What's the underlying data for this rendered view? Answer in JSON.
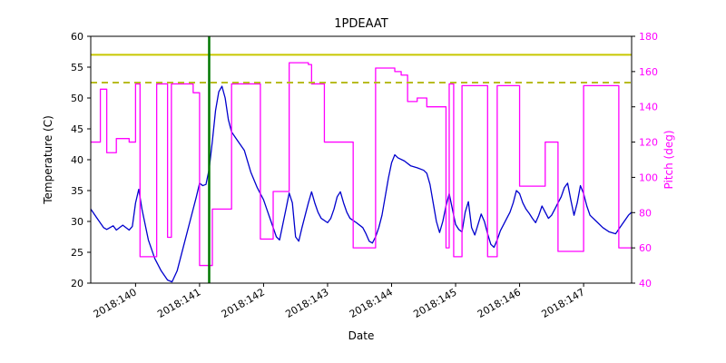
{
  "chart_data": {
    "type": "line",
    "title": "1PDEAAT",
    "xlabel": "Date",
    "ylabel_left": "Temperature (C)",
    "ylabel_right": "Pitch (deg)",
    "x_domain": [
      139.3,
      147.75
    ],
    "y_left_domain": [
      20,
      60
    ],
    "y_right_domain": [
      40,
      180
    ],
    "x_ticks": [
      {
        "value": 140,
        "label": "2018:140"
      },
      {
        "value": 141,
        "label": "2018:141"
      },
      {
        "value": 142,
        "label": "2018:142"
      },
      {
        "value": 143,
        "label": "2018:143"
      },
      {
        "value": 144,
        "label": "2018:144"
      },
      {
        "value": 145,
        "label": "2018:145"
      },
      {
        "value": 146,
        "label": "2018:146"
      },
      {
        "value": 147,
        "label": "2018:147"
      }
    ],
    "y_left_ticks": [
      20,
      25,
      30,
      35,
      40,
      45,
      50,
      55,
      60
    ],
    "y_right_ticks": [
      40,
      60,
      80,
      100,
      120,
      140,
      160,
      180
    ],
    "colors": {
      "temperature": "#0000cd",
      "pitch": "#ff00ff",
      "limit_solid": "#c8c800",
      "limit_dashed": "#b8bc20",
      "event_line": "#007700",
      "frame": "#000000"
    },
    "reference_lines": {
      "solid_yellow_temp": 57,
      "dashed_yellow_temp": 52.5,
      "green_vline_x": 141.15
    },
    "series": [
      {
        "name": "Temperature",
        "axis": "left",
        "color": "#0000cd",
        "points": [
          [
            139.3,
            32
          ],
          [
            139.4,
            30.5
          ],
          [
            139.5,
            29
          ],
          [
            139.55,
            28.7
          ],
          [
            139.65,
            29.3
          ],
          [
            139.7,
            28.6
          ],
          [
            139.8,
            29.4
          ],
          [
            139.9,
            28.6
          ],
          [
            139.95,
            29.2
          ],
          [
            140.0,
            33
          ],
          [
            140.05,
            35.2
          ],
          [
            140.1,
            32
          ],
          [
            140.2,
            27
          ],
          [
            140.3,
            24
          ],
          [
            140.4,
            22
          ],
          [
            140.5,
            20.5
          ],
          [
            140.57,
            20.2
          ],
          [
            140.65,
            22
          ],
          [
            140.75,
            26
          ],
          [
            140.85,
            30
          ],
          [
            140.95,
            34
          ],
          [
            141.0,
            36.2
          ],
          [
            141.05,
            35.8
          ],
          [
            141.1,
            36
          ],
          [
            141.15,
            38.5
          ],
          [
            141.2,
            43
          ],
          [
            141.25,
            48
          ],
          [
            141.3,
            51
          ],
          [
            141.35,
            51.9
          ],
          [
            141.4,
            50
          ],
          [
            141.45,
            46.5
          ],
          [
            141.5,
            44.5
          ],
          [
            141.6,
            43
          ],
          [
            141.7,
            41.5
          ],
          [
            141.8,
            38
          ],
          [
            141.9,
            35.5
          ],
          [
            142.0,
            33.5
          ],
          [
            142.05,
            32
          ],
          [
            142.1,
            30.5
          ],
          [
            142.15,
            29
          ],
          [
            142.2,
            27.5
          ],
          [
            142.25,
            27
          ],
          [
            142.3,
            29.5
          ],
          [
            142.35,
            32
          ],
          [
            142.4,
            34.6
          ],
          [
            142.45,
            33
          ],
          [
            142.5,
            27.5
          ],
          [
            142.55,
            26.8
          ],
          [
            142.6,
            29
          ],
          [
            142.65,
            31
          ],
          [
            142.7,
            33
          ],
          [
            142.75,
            34.8
          ],
          [
            142.8,
            33
          ],
          [
            142.85,
            31.5
          ],
          [
            142.9,
            30.5
          ],
          [
            143.0,
            29.8
          ],
          [
            143.05,
            30.5
          ],
          [
            143.1,
            32
          ],
          [
            143.15,
            34
          ],
          [
            143.2,
            34.8
          ],
          [
            143.25,
            33
          ],
          [
            143.3,
            31.5
          ],
          [
            143.35,
            30.5
          ],
          [
            143.45,
            29.8
          ],
          [
            143.55,
            29
          ],
          [
            143.6,
            28
          ],
          [
            143.65,
            26.8
          ],
          [
            143.7,
            26.5
          ],
          [
            143.75,
            27.5
          ],
          [
            143.8,
            29
          ],
          [
            143.85,
            31
          ],
          [
            143.9,
            34
          ],
          [
            143.95,
            37
          ],
          [
            144.0,
            39.5
          ],
          [
            144.05,
            40.8
          ],
          [
            144.1,
            40.3
          ],
          [
            144.2,
            39.8
          ],
          [
            144.3,
            39
          ],
          [
            144.4,
            38.7
          ],
          [
            144.5,
            38.3
          ],
          [
            144.55,
            37.8
          ],
          [
            144.6,
            36
          ],
          [
            144.65,
            33
          ],
          [
            144.7,
            30
          ],
          [
            144.75,
            28.2
          ],
          [
            144.8,
            30
          ],
          [
            144.85,
            32.5
          ],
          [
            144.9,
            34.5
          ],
          [
            144.95,
            32
          ],
          [
            145.0,
            29.5
          ],
          [
            145.05,
            28.7
          ],
          [
            145.1,
            28.3
          ],
          [
            145.15,
            31.5
          ],
          [
            145.2,
            33.2
          ],
          [
            145.25,
            29
          ],
          [
            145.3,
            27.8
          ],
          [
            145.35,
            29.5
          ],
          [
            145.4,
            31.2
          ],
          [
            145.45,
            30
          ],
          [
            145.5,
            28
          ],
          [
            145.55,
            26.3
          ],
          [
            145.6,
            25.8
          ],
          [
            145.65,
            27
          ],
          [
            145.7,
            28.5
          ],
          [
            145.75,
            29.5
          ],
          [
            145.8,
            30.5
          ],
          [
            145.85,
            31.5
          ],
          [
            145.9,
            33
          ],
          [
            145.95,
            35
          ],
          [
            146.0,
            34.5
          ],
          [
            146.05,
            33
          ],
          [
            146.1,
            32
          ],
          [
            146.15,
            31.3
          ],
          [
            146.2,
            30.5
          ],
          [
            146.25,
            29.8
          ],
          [
            146.3,
            31
          ],
          [
            146.35,
            32.5
          ],
          [
            146.4,
            31.5
          ],
          [
            146.45,
            30.5
          ],
          [
            146.5,
            31
          ],
          [
            146.55,
            32
          ],
          [
            146.6,
            33
          ],
          [
            146.65,
            34
          ],
          [
            146.7,
            35.5
          ],
          [
            146.75,
            36.2
          ],
          [
            146.8,
            33.5
          ],
          [
            146.85,
            31
          ],
          [
            146.9,
            33
          ],
          [
            146.95,
            35.8
          ],
          [
            147.0,
            34.5
          ],
          [
            147.05,
            32.5
          ],
          [
            147.1,
            31
          ],
          [
            147.2,
            30
          ],
          [
            147.3,
            29
          ],
          [
            147.4,
            28.3
          ],
          [
            147.5,
            28
          ],
          [
            147.6,
            29.5
          ],
          [
            147.7,
            31
          ],
          [
            147.75,
            31.5
          ]
        ]
      },
      {
        "name": "Pitch",
        "axis": "right",
        "color": "#ff00ff",
        "points": [
          [
            139.3,
            120
          ],
          [
            139.45,
            120
          ],
          [
            139.45,
            150
          ],
          [
            139.55,
            150
          ],
          [
            139.55,
            114
          ],
          [
            139.7,
            114
          ],
          [
            139.7,
            122
          ],
          [
            139.9,
            122
          ],
          [
            139.9,
            120
          ],
          [
            140.0,
            120
          ],
          [
            140.0,
            153
          ],
          [
            140.07,
            153
          ],
          [
            140.07,
            55
          ],
          [
            140.33,
            55
          ],
          [
            140.33,
            153
          ],
          [
            140.5,
            153
          ],
          [
            140.5,
            66
          ],
          [
            140.56,
            66
          ],
          [
            140.56,
            153
          ],
          [
            140.9,
            153
          ],
          [
            140.9,
            148
          ],
          [
            141.0,
            148
          ],
          [
            141.0,
            50
          ],
          [
            141.2,
            50
          ],
          [
            141.2,
            82
          ],
          [
            141.5,
            82
          ],
          [
            141.5,
            153
          ],
          [
            141.95,
            153
          ],
          [
            141.95,
            65
          ],
          [
            142.15,
            65
          ],
          [
            142.15,
            92
          ],
          [
            142.4,
            92
          ],
          [
            142.4,
            165
          ],
          [
            142.7,
            165
          ],
          [
            142.7,
            164
          ],
          [
            142.75,
            164
          ],
          [
            142.75,
            153
          ],
          [
            142.95,
            153
          ],
          [
            142.95,
            120
          ],
          [
            143.4,
            120
          ],
          [
            143.4,
            60
          ],
          [
            143.75,
            60
          ],
          [
            143.75,
            162
          ],
          [
            144.05,
            162
          ],
          [
            144.05,
            160
          ],
          [
            144.15,
            160
          ],
          [
            144.15,
            158
          ],
          [
            144.25,
            158
          ],
          [
            144.25,
            143
          ],
          [
            144.4,
            143
          ],
          [
            144.4,
            145
          ],
          [
            144.55,
            145
          ],
          [
            144.55,
            140
          ],
          [
            144.85,
            140
          ],
          [
            144.85,
            60
          ],
          [
            144.9,
            60
          ],
          [
            144.9,
            153
          ],
          [
            144.97,
            153
          ],
          [
            144.97,
            55
          ],
          [
            145.1,
            55
          ],
          [
            145.1,
            152
          ],
          [
            145.5,
            152
          ],
          [
            145.5,
            55
          ],
          [
            145.65,
            55
          ],
          [
            145.65,
            152
          ],
          [
            146.0,
            152
          ],
          [
            146.0,
            95
          ],
          [
            146.4,
            95
          ],
          [
            146.4,
            120
          ],
          [
            146.6,
            120
          ],
          [
            146.6,
            58
          ],
          [
            147.0,
            58
          ],
          [
            147.0,
            152
          ],
          [
            147.55,
            152
          ],
          [
            147.55,
            60
          ],
          [
            147.75,
            60
          ]
        ]
      }
    ]
  }
}
